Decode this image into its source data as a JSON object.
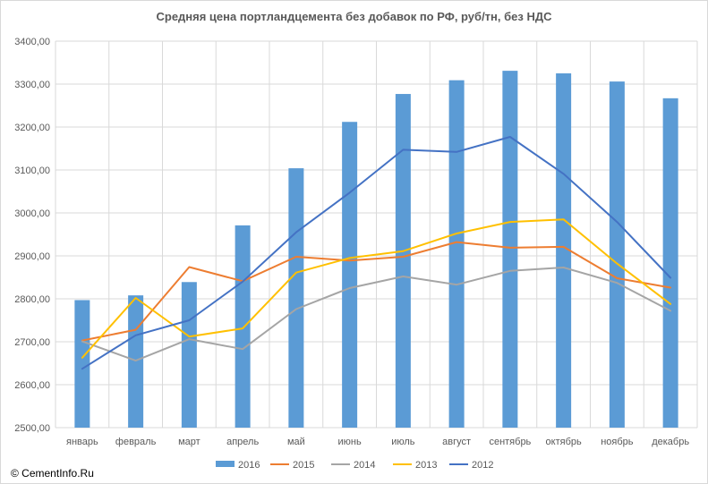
{
  "title": "Средняя цена портландцемента без добавок по РФ, руб/тн, без НДС",
  "copyright": "© CementInfo.Ru",
  "chart_data": {
    "type": "bar",
    "title": "Средняя цена портландцемента без добавок по РФ, руб/тн, без НДС",
    "xlabel": "",
    "ylabel": "",
    "ylim": [
      2500,
      3400
    ],
    "grid": true,
    "legend": "bottom",
    "categories": [
      "январь",
      "февраль",
      "март",
      "апрель",
      "май",
      "июнь",
      "июль",
      "август",
      "сентябрь",
      "октябрь",
      "ноябрь",
      "декабрь"
    ],
    "y_ticks": [
      "2500,00",
      "2600,00",
      "2700,00",
      "2800,00",
      "2900,00",
      "3000,00",
      "3100,00",
      "3200,00",
      "3300,00",
      "3400,00"
    ],
    "series": [
      {
        "name": "2016",
        "type": "bar",
        "color": "#5b9bd5",
        "values": [
          2797,
          2808,
          2839,
          2971,
          3104,
          3212,
          3277,
          3309,
          3331,
          3325,
          3306,
          3267
        ]
      },
      {
        "name": "2015",
        "type": "line",
        "color": "#ed7d31",
        "values": [
          2703,
          2728,
          2874,
          2841,
          2898,
          2889,
          2898,
          2932,
          2919,
          2921,
          2848,
          2826
        ]
      },
      {
        "name": "2014",
        "type": "line",
        "color": "#a5a5a5",
        "values": [
          2701,
          2656,
          2706,
          2683,
          2776,
          2825,
          2852,
          2833,
          2865,
          2873,
          2837,
          2772
        ]
      },
      {
        "name": "2013",
        "type": "line",
        "color": "#ffc000",
        "values": [
          2663,
          2802,
          2712,
          2731,
          2861,
          2895,
          2911,
          2952,
          2979,
          2985,
          2882,
          2788
        ]
      },
      {
        "name": "2012",
        "type": "line",
        "color": "#4472c4",
        "values": [
          2637,
          2715,
          2750,
          2840,
          2955,
          3047,
          3147,
          3142,
          3177,
          3091,
          2979,
          2849
        ]
      }
    ]
  }
}
